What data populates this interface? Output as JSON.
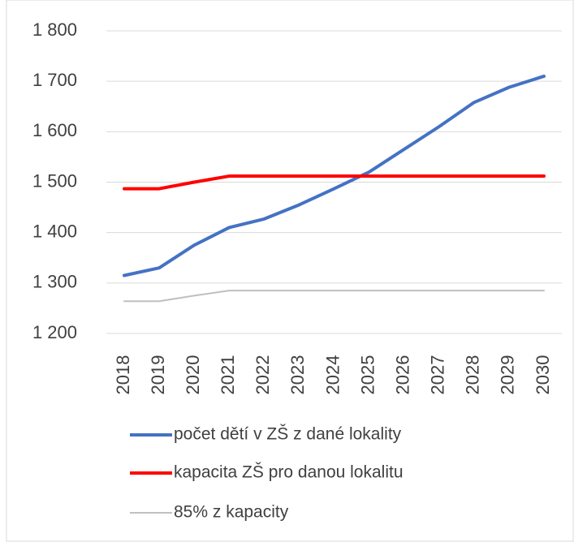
{
  "chart_data": {
    "type": "line",
    "categories": [
      "2018",
      "2019",
      "2020",
      "2021",
      "2022",
      "2023",
      "2024",
      "2025",
      "2026",
      "2027",
      "2028",
      "2029",
      "2030"
    ],
    "series": [
      {
        "name": "počet dětí v ZŠ z dané lokality",
        "color": "#4472c4",
        "width": 4,
        "values": [
          1315,
          1330,
          1375,
          1410,
          1427,
          1455,
          1487,
          1520,
          1565,
          1610,
          1658,
          1688,
          1710
        ]
      },
      {
        "name": "kapacita ZŠ pro danou lokalitu",
        "color": "#ff0000",
        "width": 4,
        "values": [
          1487,
          1487,
          1500,
          1512,
          1512,
          1512,
          1512,
          1512,
          1512,
          1512,
          1512,
          1512,
          1512
        ]
      },
      {
        "name": "85% z kapacity",
        "color": "#bfbfbf",
        "width": 2,
        "values": [
          1264,
          1264,
          1275,
          1285,
          1285,
          1285,
          1285,
          1285,
          1285,
          1285,
          1285,
          1285,
          1285
        ]
      }
    ],
    "ylim": [
      1200,
      1800
    ],
    "yticks": [
      {
        "value": 1200,
        "label": "1 200"
      },
      {
        "value": 1300,
        "label": "1 300"
      },
      {
        "value": 1400,
        "label": "1 400"
      },
      {
        "value": 1500,
        "label": "1 500"
      },
      {
        "value": 1600,
        "label": "1 600"
      },
      {
        "value": 1700,
        "label": "1 700"
      },
      {
        "value": 1800,
        "label": "1 800"
      }
    ],
    "grid": true,
    "legend": "bottom"
  }
}
